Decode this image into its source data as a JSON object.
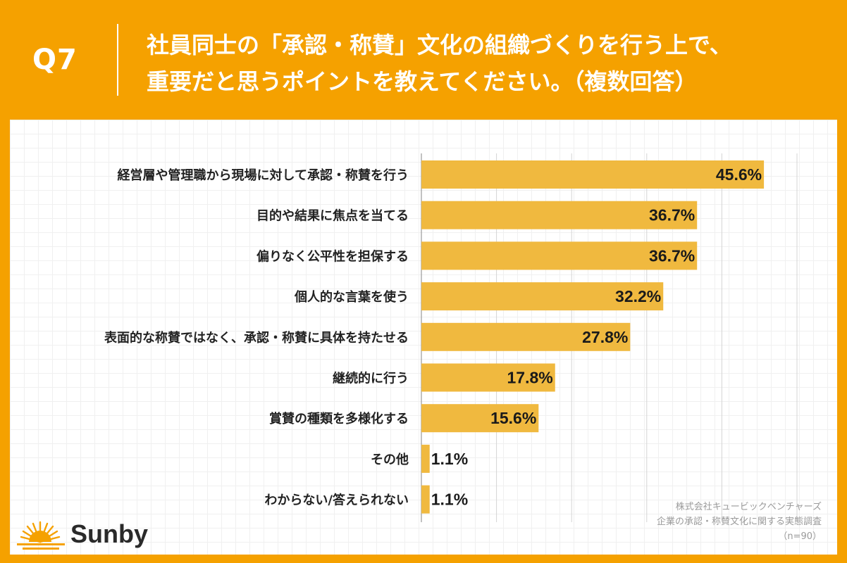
{
  "header": {
    "question_number": "Q7",
    "question_line1": "社員同士の「承認・称賛」文化の組織づくりを行う上で、",
    "question_line2": "重要だと思うポイントを教えてください。（複数回答）"
  },
  "chart_data": {
    "type": "bar",
    "orientation": "horizontal",
    "categories": [
      "経営層や管理職から現場に対して承認・称賛を行う",
      "目的や結果に焦点を当てる",
      "偏りなく公平性を担保する",
      "個人的な言葉を使う",
      "表面的な称賛ではなく、承認・称賛に具体を持たせる",
      "継続的に行う",
      "賞賛の種類を多様化する",
      "その他",
      "わからない/答えられない"
    ],
    "values": [
      45.6,
      36.7,
      36.7,
      32.2,
      27.8,
      17.8,
      15.6,
      1.1,
      1.1
    ],
    "value_labels": [
      "45.6%",
      "36.7%",
      "36.7%",
      "32.2%",
      "27.8%",
      "17.8%",
      "15.6%",
      "1.1%",
      "1.1%"
    ],
    "xlim": [
      0,
      50
    ],
    "grid": true,
    "bar_color": "#F0B93F"
  },
  "source": {
    "line1": "株式会社キュービックベンチャーズ",
    "line2": "企業の承認・称賛文化に関する実態調査",
    "line3": "（n=90）"
  },
  "brand": {
    "name": "Sunby",
    "logo_icon": "sun-rays-icon",
    "accent_color": "#F5A100"
  }
}
